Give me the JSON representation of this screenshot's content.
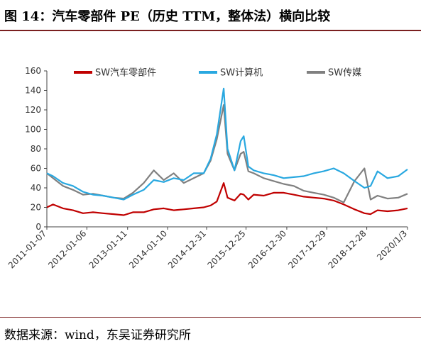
{
  "title": "图 14：汽车零部件 PE（历史 TTM，整体法）横向比较",
  "source": "数据来源：wind，东吴证券研究所",
  "chart_data": {
    "type": "line",
    "xlabel": "",
    "ylabel": "",
    "ylim": [
      0,
      160
    ],
    "yticks": [
      0,
      20,
      40,
      60,
      80,
      100,
      120,
      140,
      160
    ],
    "x_start": "2011-01-07",
    "x_end": "2020-01-03",
    "xticks": [
      "2011-01-07",
      "2012-01-06",
      "2013-01-11",
      "2014-01-10",
      "2014-12-31",
      "2015-12-25",
      "2016-12-30",
      "2017-12-29",
      "2018-12-28",
      "2020/1/3"
    ],
    "grid": false,
    "legend_position": "top",
    "series": [
      {
        "name": "SW汽车零部件",
        "color": "#c00000",
        "points": [
          [
            "2011-01-07",
            20
          ],
          [
            "2011-03-04",
            23
          ],
          [
            "2011-06-03",
            19
          ],
          [
            "2011-09-02",
            17
          ],
          [
            "2011-12-02",
            14
          ],
          [
            "2012-03-02",
            15
          ],
          [
            "2012-06-01",
            14
          ],
          [
            "2012-09-07",
            13
          ],
          [
            "2012-12-07",
            12
          ],
          [
            "2013-03-01",
            15
          ],
          [
            "2013-06-07",
            15
          ],
          [
            "2013-09-06",
            18
          ],
          [
            "2013-12-06",
            19
          ],
          [
            "2014-03-07",
            17
          ],
          [
            "2014-06-06",
            18
          ],
          [
            "2014-09-05",
            19
          ],
          [
            "2014-12-05",
            20
          ],
          [
            "2015-02-06",
            22
          ],
          [
            "2015-04-03",
            26
          ],
          [
            "2015-06-05",
            45
          ],
          [
            "2015-07-10",
            30
          ],
          [
            "2015-09-11",
            27
          ],
          [
            "2015-11-06",
            34
          ],
          [
            "2015-12-04",
            33
          ],
          [
            "2016-01-15",
            28
          ],
          [
            "2016-03-04",
            33
          ],
          [
            "2016-06-03",
            32
          ],
          [
            "2016-09-02",
            35
          ],
          [
            "2016-12-02",
            35
          ],
          [
            "2017-03-03",
            33
          ],
          [
            "2017-06-02",
            31
          ],
          [
            "2017-09-01",
            30
          ],
          [
            "2017-12-01",
            29
          ],
          [
            "2018-03-02",
            27
          ],
          [
            "2018-06-01",
            23
          ],
          [
            "2018-09-07",
            18
          ],
          [
            "2018-12-07",
            14
          ],
          [
            "2019-02-01",
            13
          ],
          [
            "2019-04-05",
            17
          ],
          [
            "2019-07-05",
            16
          ],
          [
            "2019-10-11",
            17
          ],
          [
            "2020-01-03",
            19
          ]
        ]
      },
      {
        "name": "SW计算机",
        "color": "#29a8e0",
        "points": [
          [
            "2011-01-07",
            55
          ],
          [
            "2011-03-04",
            52
          ],
          [
            "2011-06-03",
            45
          ],
          [
            "2011-09-02",
            42
          ],
          [
            "2011-12-02",
            36
          ],
          [
            "2012-03-02",
            33
          ],
          [
            "2012-06-01",
            32
          ],
          [
            "2012-09-07",
            30
          ],
          [
            "2012-12-07",
            28
          ],
          [
            "2013-03-01",
            33
          ],
          [
            "2013-06-07",
            38
          ],
          [
            "2013-09-06",
            48
          ],
          [
            "2013-12-06",
            46
          ],
          [
            "2014-03-07",
            50
          ],
          [
            "2014-06-06",
            48
          ],
          [
            "2014-09-05",
            55
          ],
          [
            "2014-12-05",
            55
          ],
          [
            "2015-02-06",
            70
          ],
          [
            "2015-04-03",
            95
          ],
          [
            "2015-06-05",
            142
          ],
          [
            "2015-07-10",
            80
          ],
          [
            "2015-09-11",
            58
          ],
          [
            "2015-11-06",
            88
          ],
          [
            "2015-12-04",
            93
          ],
          [
            "2016-01-15",
            62
          ],
          [
            "2016-03-04",
            58
          ],
          [
            "2016-06-03",
            55
          ],
          [
            "2016-09-02",
            53
          ],
          [
            "2016-12-02",
            50
          ],
          [
            "2017-03-03",
            51
          ],
          [
            "2017-06-02",
            52
          ],
          [
            "2017-09-01",
            55
          ],
          [
            "2017-12-01",
            57
          ],
          [
            "2018-03-02",
            60
          ],
          [
            "2018-06-01",
            55
          ],
          [
            "2018-09-07",
            47
          ],
          [
            "2018-12-07",
            40
          ],
          [
            "2019-02-01",
            42
          ],
          [
            "2019-04-05",
            57
          ],
          [
            "2019-07-05",
            50
          ],
          [
            "2019-10-11",
            52
          ],
          [
            "2020-01-03",
            59
          ]
        ]
      },
      {
        "name": "SW传媒",
        "color": "#808080",
        "points": [
          [
            "2011-01-07",
            55
          ],
          [
            "2011-03-04",
            50
          ],
          [
            "2011-06-03",
            42
          ],
          [
            "2011-09-02",
            38
          ],
          [
            "2011-12-02",
            33
          ],
          [
            "2012-03-02",
            34
          ],
          [
            "2012-06-01",
            32
          ],
          [
            "2012-09-07",
            30
          ],
          [
            "2012-12-07",
            29
          ],
          [
            "2013-03-01",
            35
          ],
          [
            "2013-06-07",
            45
          ],
          [
            "2013-09-06",
            58
          ],
          [
            "2013-12-06",
            48
          ],
          [
            "2014-03-07",
            55
          ],
          [
            "2014-06-06",
            45
          ],
          [
            "2014-09-05",
            50
          ],
          [
            "2014-12-05",
            55
          ],
          [
            "2015-02-06",
            68
          ],
          [
            "2015-04-03",
            90
          ],
          [
            "2015-06-05",
            125
          ],
          [
            "2015-07-10",
            75
          ],
          [
            "2015-09-11",
            58
          ],
          [
            "2015-11-06",
            75
          ],
          [
            "2015-12-04",
            77
          ],
          [
            "2016-01-15",
            57
          ],
          [
            "2016-03-04",
            55
          ],
          [
            "2016-06-03",
            50
          ],
          [
            "2016-09-02",
            47
          ],
          [
            "2016-12-02",
            44
          ],
          [
            "2017-03-03",
            42
          ],
          [
            "2017-06-02",
            37
          ],
          [
            "2017-09-01",
            35
          ],
          [
            "2017-12-01",
            33
          ],
          [
            "2018-03-02",
            30
          ],
          [
            "2018-06-01",
            25
          ],
          [
            "2018-09-07",
            47
          ],
          [
            "2018-12-07",
            60
          ],
          [
            "2019-02-01",
            28
          ],
          [
            "2019-04-05",
            32
          ],
          [
            "2019-07-05",
            29
          ],
          [
            "2019-10-11",
            30
          ],
          [
            "2020-01-03",
            34
          ]
        ]
      }
    ]
  }
}
